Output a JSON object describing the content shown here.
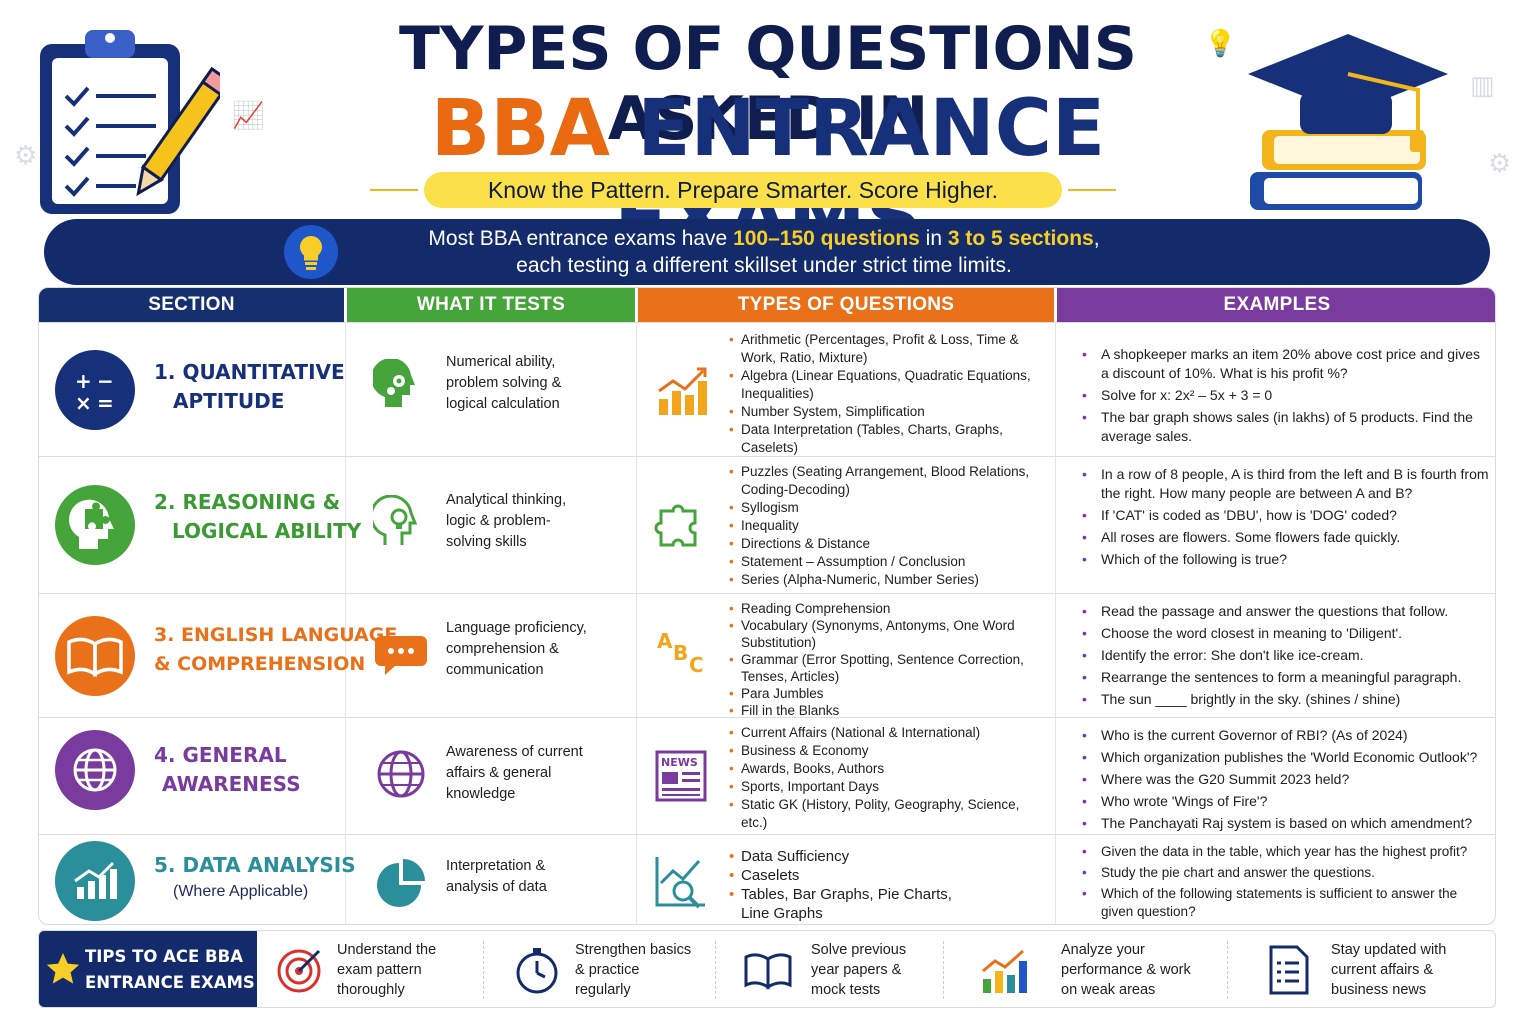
{
  "header": {
    "title_line1": "TYPES OF QUESTIONS ASKED IN",
    "title_line2_accent": "BBA",
    "title_line2_rest": " ENTRANCE EXAMS",
    "tagline": "Know the Pattern. Prepare Smarter. Score Higher."
  },
  "banner": {
    "text_a": "Most BBA entrance exams have ",
    "highlight_a": "100–150 questions",
    "text_b": " in ",
    "highlight_b": "3 to 5 sections",
    "text_c": ",",
    "line2": "each testing a different skillset under strict time limits."
  },
  "table": {
    "headers": [
      "SECTION",
      "WHAT IT TESTS",
      "TYPES OF QUESTIONS",
      "EXAMPLES"
    ],
    "rows": [
      {
        "name_line1": "1. QUANTITATIVE",
        "name_line2": "APTITUDE",
        "name_sub": "",
        "color": "#17307a",
        "icon": "math-symbols-icon",
        "tests": [
          "Numerical ability,",
          "problem solving &",
          "logical calculation"
        ],
        "types": [
          "Arithmetic (Percentages, Profit & Loss, Time & Work, Ratio, Mixture)",
          "Algebra (Linear Equations, Quadratic Equations, Inequalities)",
          "Number System, Simplification",
          "Data Interpretation (Tables, Charts, Graphs, Caselets)"
        ],
        "examples": [
          "A shopkeeper marks an item 20% above cost price and gives a discount of 10%. What is his profit %?",
          "Solve for x: 2x² – 5x + 3 = 0",
          "The bar graph shows sales (in lakhs) of 5 products. Find the average sales."
        ]
      },
      {
        "name_line1": "2. REASONING &",
        "name_line2": "LOGICAL ABILITY",
        "name_sub": "",
        "color": "#3b9a34",
        "icon": "brain-puzzle-icon",
        "tests": [
          "Analytical thinking,",
          "logic & problem-",
          "solving skills"
        ],
        "types": [
          "Puzzles (Seating Arrangement, Blood Relations, Coding-Decoding)",
          "Syllogism",
          "Inequality",
          "Directions & Distance",
          "Statement – Assumption / Conclusion",
          "Series (Alpha-Numeric, Number Series)"
        ],
        "examples": [
          "In a row of 8 people, A is third from the left and B is fourth from the right. How many people are between A and B?",
          "If 'CAT' is coded as 'DBU', how is 'DOG' coded?",
          "All roses are flowers. Some flowers fade quickly.",
          "Which of the following is true?"
        ]
      },
      {
        "name_line1": "3. ENGLISH LANGUAGE",
        "name_line2": "& COMPREHENSION",
        "name_sub": "",
        "color": "#e8711a",
        "icon": "open-book-icon",
        "tests": [
          "Language proficiency,",
          "comprehension &",
          "communication"
        ],
        "types": [
          "Reading Comprehension",
          "Vocabulary (Synonyms, Antonyms, One Word Substitution)",
          "Grammar (Error Spotting, Sentence Correction, Tenses, Articles)",
          "Para Jumbles",
          "Fill in the Blanks"
        ],
        "examples": [
          "Read the passage and answer the questions that follow.",
          "Choose the word closest in meaning to 'Diligent'.",
          "Identify the error: She don't like ice-cream.",
          "Rearrange the sentences to form a meaningful paragraph.",
          "The sun ____ brightly in the sky. (shines / shine)"
        ]
      },
      {
        "name_line1": "4. GENERAL",
        "name_line2": "AWARENESS",
        "name_sub": "",
        "color": "#7a3b9e",
        "icon": "globe-icon",
        "tests": [
          "Awareness of current",
          "affairs & general",
          "knowledge"
        ],
        "types": [
          "Current Affairs (National & International)",
          "Business & Economy",
          "Awards, Books, Authors",
          "Sports, Important Days",
          "Static GK (History, Polity, Geography, Science, etc.)"
        ],
        "examples": [
          "Who is the current Governor of RBI? (As of 2024)",
          "Which organization publishes the 'World Economic Outlook'?",
          "Where was the G20 Summit 2023 held?",
          "Who wrote 'Wings of Fire'?",
          "The Panchayati Raj system is based on which amendment?"
        ]
      },
      {
        "name_line1": "5. DATA ANALYSIS",
        "name_line2": "",
        "name_sub": "(Where Applicable)",
        "color": "#2a8f9a",
        "icon": "bar-chart-icon",
        "tests": [
          "Interpretation &",
          "analysis of data"
        ],
        "types": [
          "Data Sufficiency",
          "Caselets",
          "Tables, Bar Graphs, Pie Charts, Line Graphs"
        ],
        "examples": [
          "Given the data in the table, which year has the highest profit?",
          "Study the pie chart and answer the questions.",
          "Which of the following statements is sufficient to answer the given question?"
        ]
      }
    ]
  },
  "tips": {
    "title_line1": "TIPS TO ACE BBA",
    "title_line2": "ENTRANCE EXAMS",
    "items": [
      {
        "icon": "target-icon",
        "lines": [
          "Understand the",
          "exam pattern",
          "thoroughly"
        ]
      },
      {
        "icon": "stopwatch-icon",
        "lines": [
          "Strengthen basics",
          "& practice",
          "regularly"
        ]
      },
      {
        "icon": "book-icon",
        "lines": [
          "Solve previous",
          "year papers &",
          "mock tests"
        ]
      },
      {
        "icon": "growth-chart-icon",
        "lines": [
          "Analyze your",
          "performance & work",
          "on weak areas"
        ]
      },
      {
        "icon": "document-icon",
        "lines": [
          "Stay updated with",
          "current affairs &",
          "business news"
        ]
      }
    ]
  },
  "news_label": "NEWS",
  "abc_label": [
    "A",
    "B",
    "C"
  ],
  "colors": {
    "navy": "#132a6b",
    "orange": "#e8711a",
    "green": "#45a53a",
    "purple": "#7a3b9e",
    "yellow": "#fbe04a"
  }
}
